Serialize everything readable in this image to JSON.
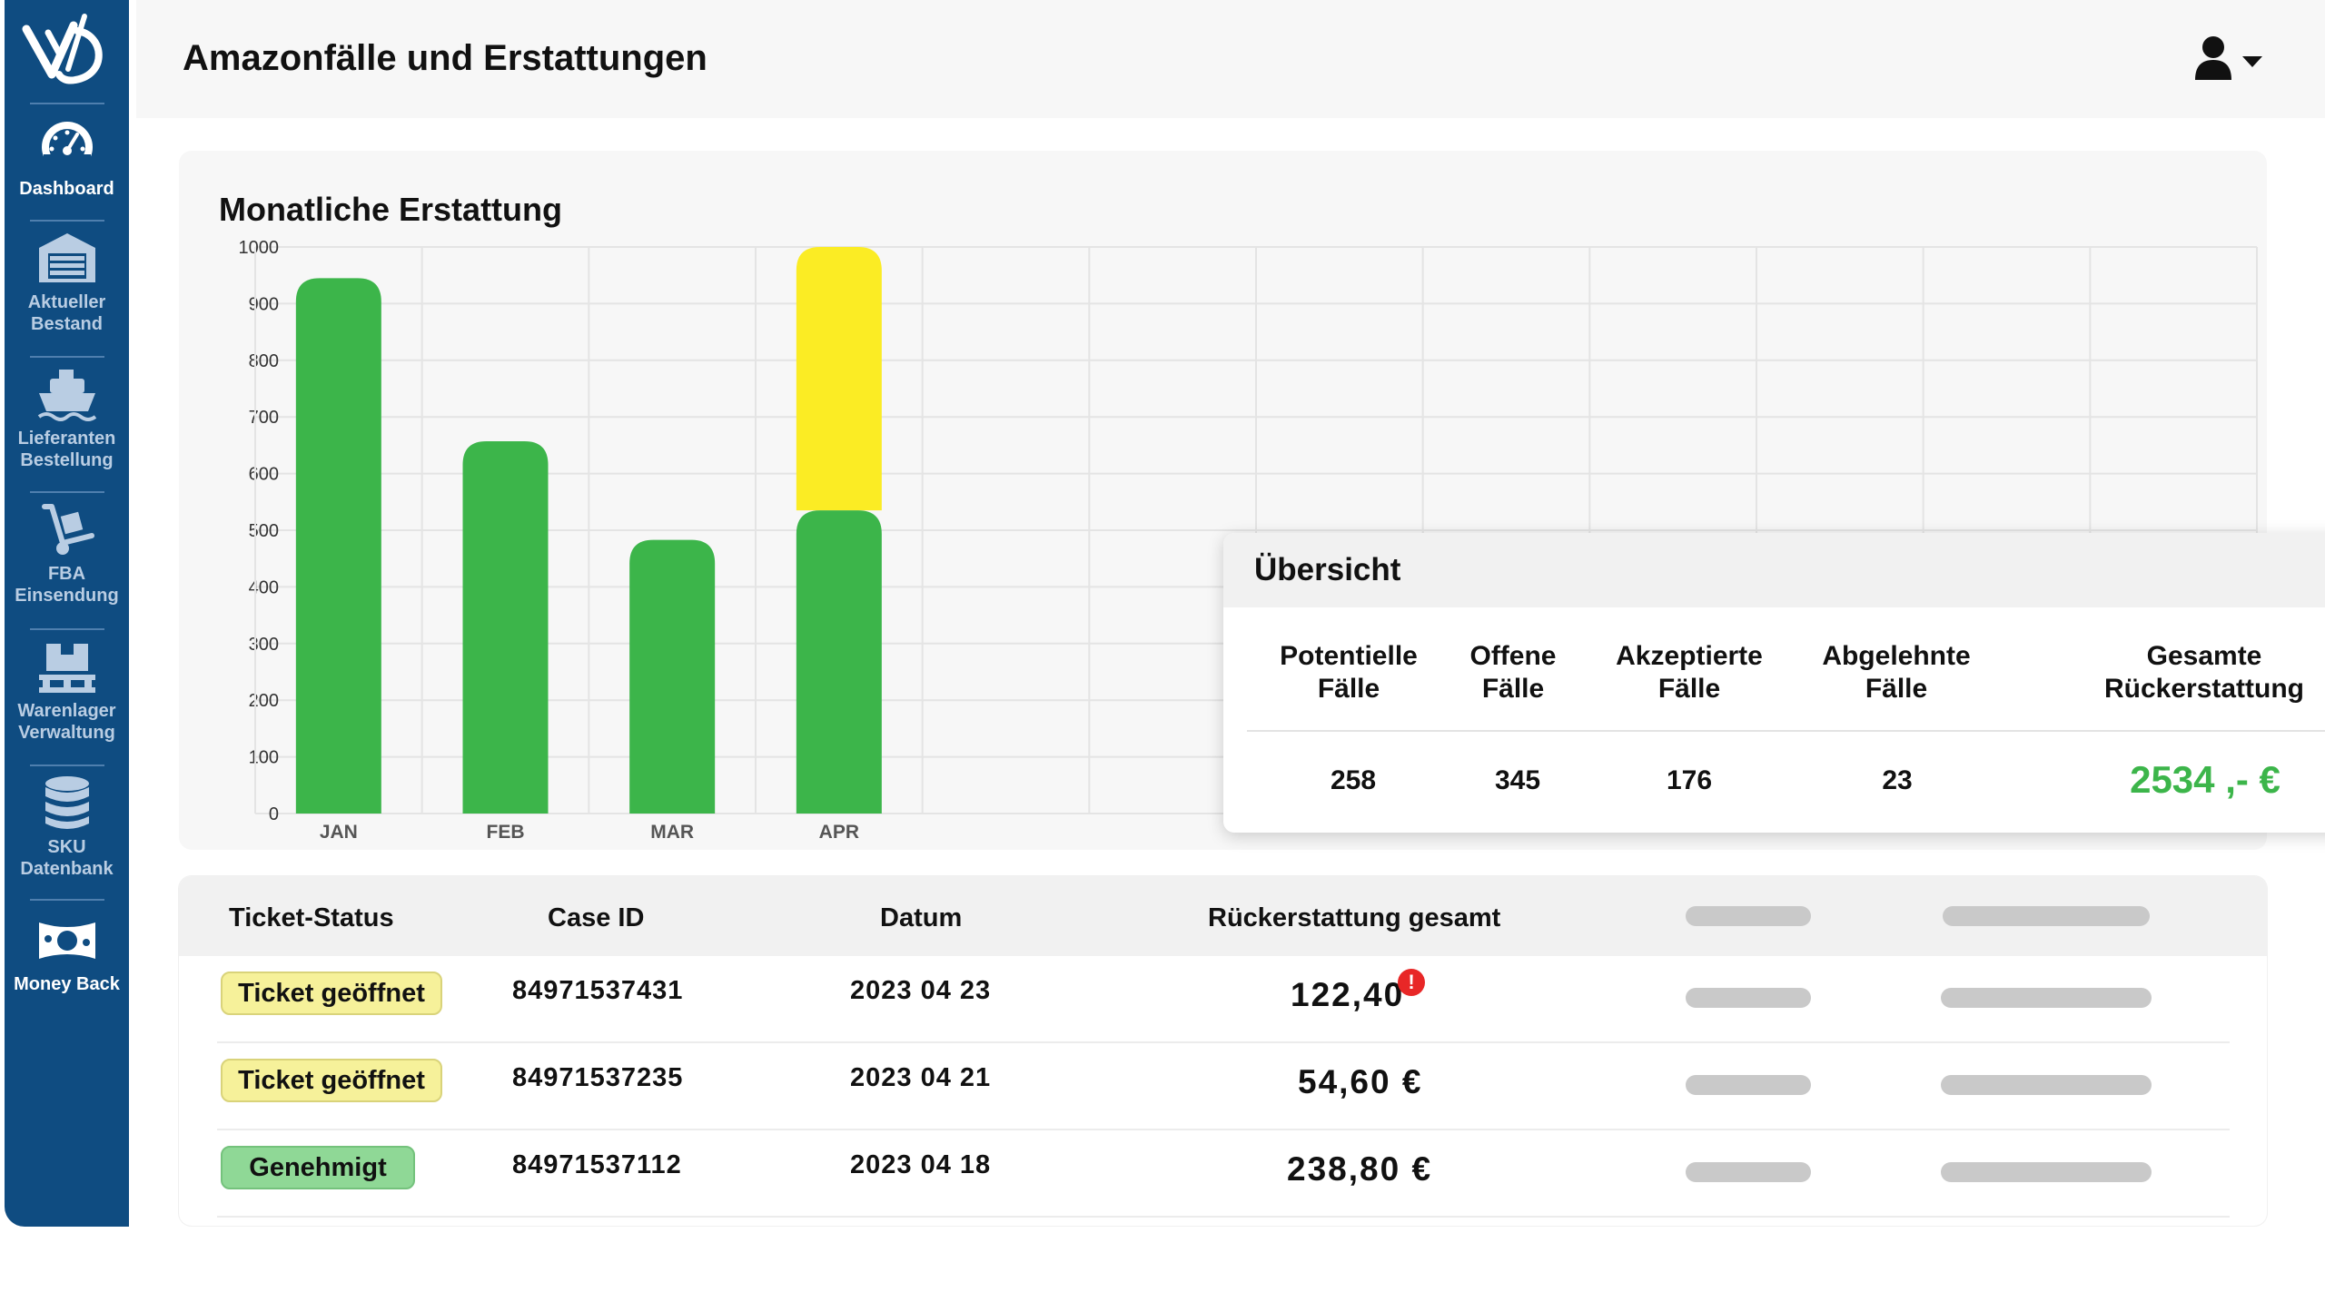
{
  "sidebar": {
    "items": [
      {
        "label": "Dashboard",
        "icon": "speedometer-icon",
        "active": true
      },
      {
        "label": "Aktueller\nBestand",
        "icon": "warehouse-icon",
        "active": false
      },
      {
        "label": "Lieferanten\nBestellung",
        "icon": "ship-icon",
        "active": false
      },
      {
        "label": "FBA\nEinsendung",
        "icon": "hand-truck-icon",
        "active": false
      },
      {
        "label": "Warenlager\nVerwaltung",
        "icon": "pallet-icon",
        "active": false
      },
      {
        "label": "SKU\nDatenbank",
        "icon": "database-icon",
        "active": false
      },
      {
        "label": "Money Back",
        "icon": "money-icon",
        "active": true
      }
    ]
  },
  "header": {
    "title": "Amazonfälle und Erstattungen",
    "user_icon": "user-icon"
  },
  "chart_title": "Monatliche Erstattung",
  "chart_data": {
    "type": "bar",
    "title": "Monatliche Erstattung",
    "categories": [
      "JAN",
      "FEB",
      "MAR",
      "APR"
    ],
    "series": [
      {
        "color": "#3cb54a",
        "values": [
          945,
          657,
          483,
          535
        ]
      },
      {
        "color": "#fbec24",
        "values": [
          0,
          0,
          0,
          465
        ]
      }
    ],
    "stacked": true,
    "ylim": [
      0,
      1000
    ],
    "yticks": [
      0,
      100,
      200,
      300,
      400,
      500,
      600,
      700,
      800,
      900,
      1000
    ],
    "grid": true
  },
  "overview": {
    "title": "Übersicht",
    "columns": [
      {
        "label": "Potentielle\nFälle",
        "value": "258"
      },
      {
        "label": "Offene\nFälle",
        "value": "345"
      },
      {
        "label": "Akzeptierte\nFälle",
        "value": "176"
      },
      {
        "label": "Abgelehnte\nFälle",
        "value": "23"
      },
      {
        "label": "Gesamte\nRückerstattung",
        "value": "2534 ,- €"
      }
    ],
    "accent_color": "#3cb54a"
  },
  "table": {
    "headers": [
      "Ticket-Status",
      "Case ID",
      "Datum",
      "Rückerstattung gesamt"
    ],
    "rows": [
      {
        "status": "Ticket geöffnet",
        "status_type": "open",
        "case_id": "84971537431",
        "date": "2023 04 23",
        "amount": "122,40",
        "alert": "!"
      },
      {
        "status": "Ticket geöffnet",
        "status_type": "open",
        "case_id": "84971537235",
        "date": "2023 04 21",
        "amount": "54,60 €",
        "alert": ""
      },
      {
        "status": "Genehmigt",
        "status_type": "ok",
        "case_id": "84971537112",
        "date": "2023 04 18",
        "amount": "238,80 €",
        "alert": ""
      }
    ]
  }
}
